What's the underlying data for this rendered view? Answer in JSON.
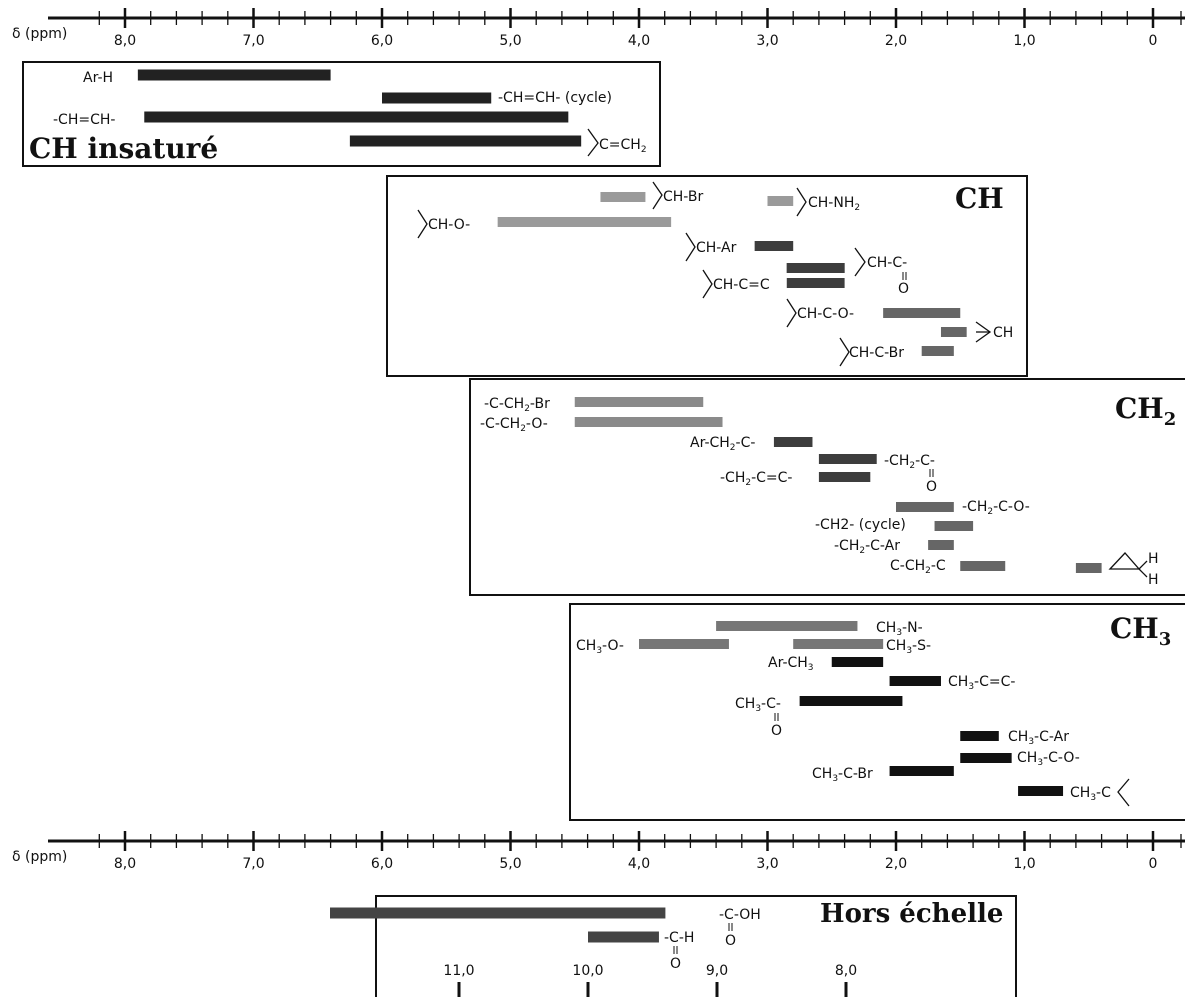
{
  "chart_data": {
    "type": "range-bar",
    "axis_label": "δ (ppm)",
    "ticks": [
      "8,0",
      "7,0",
      "6,0",
      "5,0",
      "4,0",
      "3,0",
      "2,0",
      "1,0",
      "0"
    ],
    "xlim": [
      8.3,
      -0.3
    ],
    "groups": [
      {
        "title": "CH insaturé",
        "bars": [
          {
            "label": "Ar-H",
            "from": 7.9,
            "to": 6.4
          },
          {
            "label": "-CH=CH- (cycle)",
            "from": 6.0,
            "to": 5.15
          },
          {
            "label": "-CH=CH-",
            "from": 7.85,
            "to": 4.55
          },
          {
            "label": "C=CH₂",
            "from": 6.25,
            "to": 4.45
          }
        ]
      },
      {
        "title": "CH",
        "bars": [
          {
            "label": "CH-Br",
            "from": 4.3,
            "to": 3.95
          },
          {
            "label": "CH-NH₂",
            "from": 3.0,
            "to": 2.8
          },
          {
            "label": "CH-O-",
            "from": 5.1,
            "to": 3.75
          },
          {
            "label": "CH-Ar",
            "from": 3.1,
            "to": 2.8
          },
          {
            "label": "CH-C=C",
            "from": 2.85,
            "to": 2.4
          },
          {
            "label": "CH-C=C",
            "from": 2.85,
            "to": 2.4
          },
          {
            "label": "CH-C(=O)-",
            "from": 2.85,
            "to": 2.4
          },
          {
            "label": "CH-C-O-",
            "from": 2.1,
            "to": 1.5
          },
          {
            "label": "cyclopropyl CH",
            "from": 1.65,
            "to": 1.45
          },
          {
            "label": "CH-C-Br",
            "from": 1.8,
            "to": 1.55
          }
        ]
      },
      {
        "title": "CH₂",
        "bars": [
          {
            "label": "-C-CH₂-Br",
            "from": 4.5,
            "to": 3.5
          },
          {
            "label": "-C-CH₂-O-",
            "from": 4.5,
            "to": 3.35
          },
          {
            "label": "Ar-CH₂-C-",
            "from": 2.95,
            "to": 2.65
          },
          {
            "label": "-CH₂-C(=O)-",
            "from": 2.6,
            "to": 2.15
          },
          {
            "label": "-CH₂-C=C-",
            "from": 2.6,
            "to": 2.2
          },
          {
            "label": "-CH₂-C-O-",
            "from": 2.0,
            "to": 1.55
          },
          {
            "label": "-CH2- (cycle)",
            "from": 1.7,
            "to": 1.4
          },
          {
            "label": "-CH₂-C-Ar",
            "from": 1.75,
            "to": 1.55
          },
          {
            "label": "C-CH₂-C",
            "from": 1.5,
            "to": 1.15
          },
          {
            "label": "cyclopropane CH₂",
            "from": 0.6,
            "to": 0.4
          }
        ]
      },
      {
        "title": "CH₃",
        "bars": [
          {
            "label": "CH₃-N-",
            "from": 3.4,
            "to": 2.3
          },
          {
            "label": "CH₃-O-",
            "from": 4.0,
            "to": 3.3
          },
          {
            "label": "CH₃-S-",
            "from": 2.8,
            "to": 2.1
          },
          {
            "label": "Ar-CH₃",
            "from": 2.5,
            "to": 2.1
          },
          {
            "label": "CH₃-C=C-",
            "from": 2.05,
            "to": 1.65
          },
          {
            "label": "CH₃-C(=O)",
            "from": 2.75,
            "to": 1.95
          },
          {
            "label": "CH₃-C-Ar",
            "from": 1.5,
            "to": 1.2
          },
          {
            "label": "CH₃-C-O-",
            "from": 1.5,
            "to": 1.1
          },
          {
            "label": "CH₃-C-Br",
            "from": 2.05,
            "to": 1.55
          },
          {
            "label": "CH₃-C",
            "from": 1.05,
            "to": 0.7
          }
        ]
      }
    ],
    "offscale": {
      "title": "Hors échelle",
      "ticks": [
        "11,0",
        "10,0",
        "9,0",
        "8,0"
      ],
      "bars": [
        {
          "label": "-C(=O)-OH",
          "from": 12.0,
          "to": 9.4
        },
        {
          "label": "-C(=O)-H",
          "from": 10.0,
          "to": 9.45
        }
      ]
    }
  },
  "labels": {
    "arh": "Ar-H",
    "chch_cycle": "-CH=CH- (cycle)",
    "chch": "-CH=CH-",
    "cch2": "C=CH",
    "sub2": "2",
    "ch_insature": "CH insaturé",
    "ch_title": "CH",
    "ch2_title": "CH",
    "ch3_title": "CH",
    "title_sub2": "2",
    "title_sub3": "3",
    "chbr": "CH-Br",
    "chnh2": "CH-NH",
    "cho": "CH-O-",
    "char": "CH-Ar",
    "chc_eq_c": "CH-C=C",
    "chc_carb": "CH-C-",
    "o": "O",
    "chco": "CH-C-O-",
    "ch_cyclo": "CH",
    "chcbr": "CH-C-Br",
    "c_ch2_br_a": "-C-CH",
    "c_ch2_br_b": "-Br",
    "c_ch2_o_a": "-C-CH",
    "c_ch2_o_b": "-O-",
    "ar_ch2_a": "Ar-CH",
    "ar_ch2_b": "-C-",
    "ch2_carb_a": "-CH",
    "ch2_carb_b": "-C-",
    "ch2_cc_a": "-CH",
    "ch2_cc_b": "-C=C-",
    "ch2_co_a": "-CH",
    "ch2_co_b": "-C-O-",
    "ch2_cycle": "-CH2- (cycle)",
    "ch2_car_a": "-CH",
    "ch2_car_b": "-C-Ar",
    "c_ch2_c_a": "C-CH",
    "c_ch2_c_b": "-C",
    "h": "H",
    "ch3n_a": "CH",
    "ch3n_b": "-N-",
    "ch3o_a": "CH",
    "ch3o_b": "-O-",
    "ch3s_a": "CH",
    "ch3s_b": "-S-",
    "arch3_a": "Ar-CH",
    "ch3cc_a": "CH",
    "ch3cc_b": "-C=C-",
    "ch3carb_a": "CH",
    "ch3carb_b": "-C-",
    "ch3car_a": "CH",
    "ch3car_b": "-C-Ar",
    "ch3co_a": "CH",
    "ch3co_b": "-C-O-",
    "ch3cbr_a": "CH",
    "ch3cbr_b": "-C-Br",
    "ch3c_a": "CH",
    "ch3c_b": "-C",
    "sub3": "3",
    "hors": "Hors échelle",
    "cooh": "-C-OH",
    "coh": "-C-H"
  }
}
